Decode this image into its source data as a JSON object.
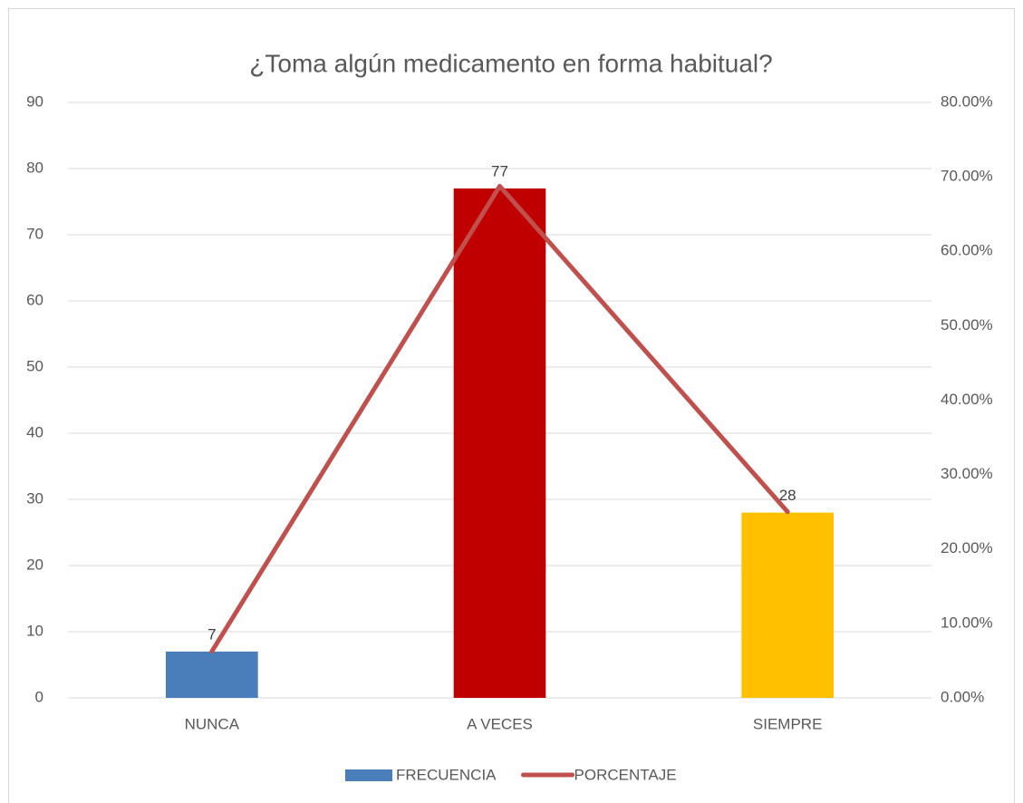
{
  "chart_data": {
    "type": "bar",
    "title": "¿Toma algún medicamento en forma habitual?",
    "categories": [
      "NUNCA",
      "A  VECES",
      "SIEMPRE"
    ],
    "series": [
      {
        "name": "FRECUENCIA",
        "type": "bar",
        "color": "#4a7ebb",
        "colors": [
          "#4a7ebb",
          "#c00000",
          "#ffc000"
        ],
        "values": [
          7,
          77,
          28
        ]
      },
      {
        "name": "PORCENTAJE",
        "type": "line",
        "color": "#c0504d",
        "axis": "y2",
        "values": [
          6.25,
          68.75,
          25
        ]
      }
    ],
    "ylim": [
      0,
      90
    ],
    "yticks": [
      0,
      10,
      20,
      30,
      40,
      50,
      60,
      70,
      80,
      90
    ],
    "y2lim": [
      0,
      80
    ],
    "y2ticks": [
      {
        "value": 0,
        "label": "0.00%"
      },
      {
        "value": 10,
        "label": "10.00%"
      },
      {
        "value": 20,
        "label": "20.00%"
      },
      {
        "value": 30,
        "label": "30.00%"
      },
      {
        "value": 40,
        "label": "40.00%"
      },
      {
        "value": 50,
        "label": "50.00%"
      },
      {
        "value": 60,
        "label": "60.00%"
      },
      {
        "value": 70,
        "label": "70.00%"
      },
      {
        "value": 80,
        "label": "80.00%"
      }
    ],
    "grid": true,
    "legend": "bottom"
  }
}
